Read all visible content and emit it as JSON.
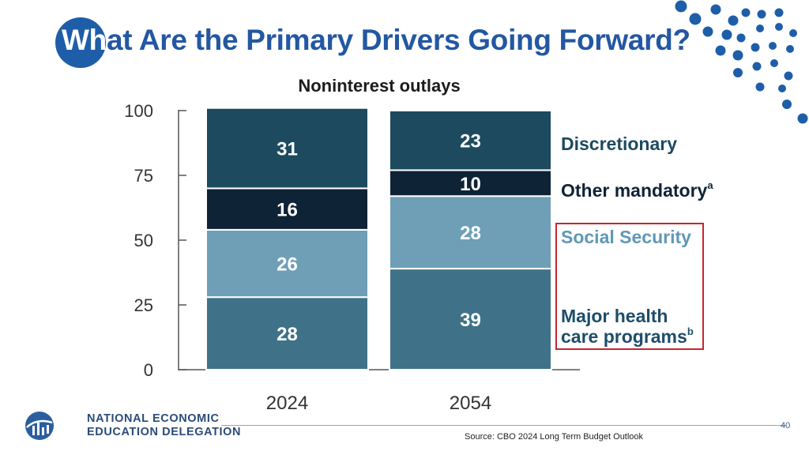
{
  "slide": {
    "title_initial": "Wh",
    "title_rest": "at Are the Primary Drivers Going Forward?",
    "page_number": "40",
    "source": "Source: CBO 2024 Long Term Budget Outlook",
    "org_line1": "NATIONAL ECONOMIC",
    "org_line2": "EDUCATION DELEGATION"
  },
  "colors": {
    "title": "#2357a3",
    "accent_dots": "#1e5ea8",
    "highlight_box": "#c8252c",
    "discretionary": "#1d4a5f",
    "other_mandatory": "#0f2336",
    "social_security": "#6f9fb6",
    "health_care": "#3f7288"
  },
  "chart_data": {
    "type": "bar",
    "stacked": true,
    "title": "Noninterest outlays",
    "categories": [
      "2024",
      "2054"
    ],
    "ylim": [
      0,
      100
    ],
    "yticks": [
      "0",
      "25",
      "50",
      "75",
      "100"
    ],
    "series": [
      {
        "name": "Major health",
        "name_line2": "care programs",
        "superscript": "b",
        "values": [
          28,
          39
        ],
        "color_key": "health_care"
      },
      {
        "name": "Social Security",
        "superscript": "",
        "values": [
          26,
          28
        ],
        "color_key": "social_security"
      },
      {
        "name": "Other mandatory",
        "superscript": "a",
        "values": [
          16,
          10
        ],
        "color_key": "other_mandatory"
      },
      {
        "name": "Discretionary",
        "superscript": "",
        "values": [
          31,
          23
        ],
        "color_key": "discretionary"
      }
    ]
  }
}
